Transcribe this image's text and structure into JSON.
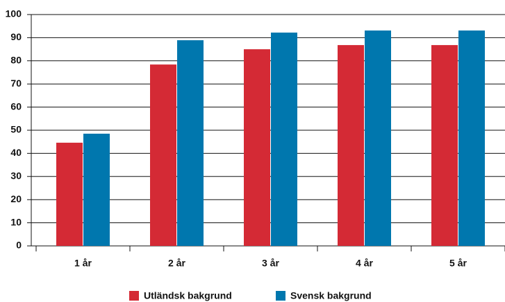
{
  "chart_data": {
    "type": "bar",
    "categories": [
      "1 år",
      "2 år",
      "3 år",
      "4 år",
      "5 år"
    ],
    "series": [
      {
        "name": "Utländsk bakgrund",
        "color": "#d42a35",
        "values": [
          44.6,
          78.4,
          85.0,
          86.8,
          86.8
        ]
      },
      {
        "name": "Svensk bakgrund",
        "color": "#0077ae",
        "values": [
          48.5,
          88.9,
          92.2,
          93.1,
          93.1
        ]
      }
    ],
    "ylim": [
      0,
      100
    ],
    "yticks": [
      0,
      10,
      20,
      30,
      40,
      50,
      60,
      70,
      80,
      90,
      100
    ],
    "grid": true,
    "legend": "bottom"
  }
}
